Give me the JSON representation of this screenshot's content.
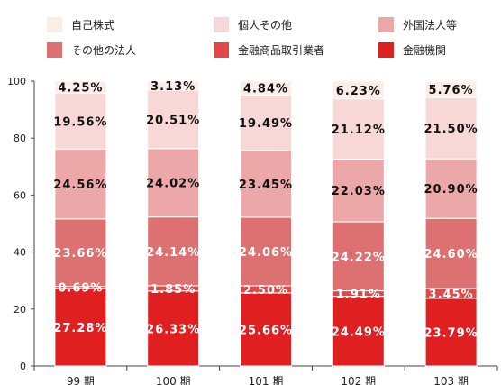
{
  "chart_data": {
    "type": "bar",
    "stacked": true,
    "categories": [
      "99 期",
      "100 期",
      "101 期",
      "102 期",
      "103 期"
    ],
    "ylim": [
      0,
      100
    ],
    "yticks": [
      0,
      20,
      40,
      60,
      80,
      100
    ],
    "legend_placement": "top",
    "series": [
      {
        "name": "金融機関",
        "color": "#e02020",
        "labels": [
          "27.28%",
          "26.33%",
          "25.66%",
          "24.49%",
          "23.79%"
        ],
        "values": [
          27.28,
          26.33,
          25.66,
          24.49,
          23.79
        ]
      },
      {
        "name": "金融商品取引業者",
        "color": "#e04848",
        "labels": [
          "0.69%",
          "1.85%",
          "2.50%",
          "1.91%",
          "3.45%"
        ],
        "values": [
          0.69,
          1.85,
          2.5,
          1.91,
          3.45
        ]
      },
      {
        "name": "その他の法人",
        "color": "#dd7070",
        "labels": [
          "23.66%",
          "24.14%",
          "24.06%",
          "24.22%",
          "24.60%"
        ],
        "values": [
          23.66,
          24.14,
          24.06,
          24.22,
          24.6
        ]
      },
      {
        "name": "外国法人等",
        "color": "#eca8a8",
        "labels": [
          "24.56%",
          "24.02%",
          "23.45%",
          "22.03%",
          "20.90%"
        ],
        "values": [
          24.56,
          24.02,
          23.45,
          22.03,
          20.9
        ]
      },
      {
        "name": "個人その他",
        "color": "#f7d8d6",
        "labels": [
          "19.56%",
          "20.51%",
          "19.49%",
          "21.12%",
          "21.50%"
        ],
        "values": [
          19.56,
          20.51,
          19.49,
          21.12,
          21.5
        ]
      },
      {
        "name": "自己株式",
        "color": "#fbeee8",
        "labels": [
          "4.25%",
          "3.13%",
          "4.84%",
          "6.23%",
          "5.76%"
        ],
        "values": [
          4.25,
          3.13,
          4.84,
          6.23,
          5.76
        ]
      }
    ]
  }
}
